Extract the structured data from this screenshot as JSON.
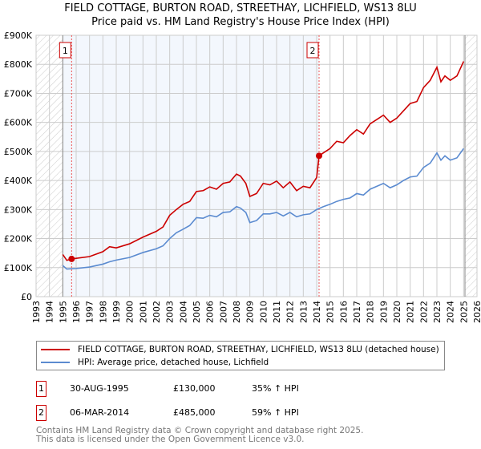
{
  "header": {
    "title": "FIELD COTTAGE, BURTON ROAD, STREETHAY, LICHFIELD, WS13 8LU",
    "subtitle": "Price paid vs. HM Land Registry's House Price Index (HPI)"
  },
  "chart_data": {
    "type": "line",
    "title": "FIELD COTTAGE, BURTON ROAD, STREETHAY, LICHFIELD, WS13 8LU",
    "subtitle": "Price paid vs. HM Land Registry's House Price Index (HPI)",
    "xlim": [
      1993,
      2026
    ],
    "ylim": [
      0,
      900000
    ],
    "x_ticks": [
      "1993",
      "1994",
      "1995",
      "1996",
      "1997",
      "1998",
      "1999",
      "2000",
      "2001",
      "2002",
      "2003",
      "2004",
      "2005",
      "2006",
      "2007",
      "2008",
      "2009",
      "2010",
      "2011",
      "2012",
      "2013",
      "2014",
      "2015",
      "2016",
      "2017",
      "2018",
      "2019",
      "2020",
      "2021",
      "2022",
      "2023",
      "2024",
      "2025",
      "2026"
    ],
    "y_ticks": [
      {
        "v": 0,
        "label": "£0"
      },
      {
        "v": 100000,
        "label": "£100K"
      },
      {
        "v": 200000,
        "label": "£200K"
      },
      {
        "v": 300000,
        "label": "£300K"
      },
      {
        "v": 400000,
        "label": "£400K"
      },
      {
        "v": 500000,
        "label": "£500K"
      },
      {
        "v": 600000,
        "label": "£600K"
      },
      {
        "v": 700000,
        "label": "£700K"
      },
      {
        "v": 800000,
        "label": "£800K"
      },
      {
        "v": 900000,
        "label": "£900K"
      }
    ],
    "grid": true,
    "data_range": [
      1995,
      2025.1
    ],
    "shaded_range": [
      1995,
      2014.18
    ],
    "series": [
      {
        "name": "FIELD COTTAGE, BURTON ROAD, STREETHAY, LICHFIELD, WS13 8LU (detached house)",
        "color": "#cc0000",
        "x": [
          1995,
          1995.3,
          1995.66,
          1996,
          1997,
          1998,
          1998.5,
          1999,
          2000,
          2001,
          2002,
          2002.5,
          2003,
          2003.5,
          2004,
          2004.5,
          2005,
          2005.5,
          2006,
          2006.5,
          2007,
          2007.5,
          2008,
          2008.3,
          2008.7,
          2009,
          2009.5,
          2010,
          2010.5,
          2011,
          2011.5,
          2012,
          2012.5,
          2013,
          2013.5,
          2014,
          2014.18,
          2014.5,
          2015,
          2015.5,
          2016,
          2016.5,
          2017,
          2017.5,
          2018,
          2018.5,
          2019,
          2019.5,
          2020,
          2020.5,
          2021,
          2021.5,
          2022,
          2022.5,
          2023,
          2023.3,
          2023.6,
          2024,
          2024.5,
          2025
        ],
        "y": [
          145000,
          125000,
          130000,
          132000,
          138000,
          155000,
          172000,
          168000,
          182000,
          205000,
          225000,
          240000,
          280000,
          300000,
          318000,
          328000,
          362000,
          365000,
          378000,
          370000,
          390000,
          395000,
          422000,
          415000,
          390000,
          345000,
          355000,
          390000,
          385000,
          398000,
          375000,
          395000,
          365000,
          380000,
          375000,
          410000,
          485000,
          495000,
          510000,
          535000,
          530000,
          555000,
          575000,
          560000,
          595000,
          610000,
          625000,
          600000,
          615000,
          640000,
          665000,
          672000,
          720000,
          745000,
          790000,
          740000,
          760000,
          745000,
          760000,
          810000
        ]
      },
      {
        "name": "HPI: Average price, detached house, Lichfield",
        "color": "#5b8bd0",
        "x": [
          1995,
          1995.3,
          1996,
          1997,
          1998,
          1998.5,
          1999,
          2000,
          2001,
          2002,
          2002.5,
          2003,
          2003.5,
          2004,
          2004.5,
          2005,
          2005.5,
          2006,
          2006.5,
          2007,
          2007.5,
          2008,
          2008.3,
          2008.7,
          2009,
          2009.5,
          2010,
          2010.5,
          2011,
          2011.5,
          2012,
          2012.5,
          2013,
          2013.5,
          2014,
          2014.5,
          2015,
          2015.5,
          2016,
          2016.5,
          2017,
          2017.5,
          2018,
          2018.5,
          2019,
          2019.5,
          2020,
          2020.5,
          2021,
          2021.5,
          2022,
          2022.5,
          2023,
          2023.3,
          2023.6,
          2024,
          2024.5,
          2025
        ],
        "y": [
          107000,
          95000,
          97000,
          102000,
          112000,
          120000,
          126000,
          135000,
          152000,
          165000,
          175000,
          200000,
          220000,
          232000,
          245000,
          272000,
          270000,
          280000,
          275000,
          290000,
          292000,
          310000,
          305000,
          290000,
          255000,
          262000,
          285000,
          285000,
          290000,
          278000,
          290000,
          275000,
          282000,
          285000,
          300000,
          310000,
          318000,
          328000,
          335000,
          340000,
          355000,
          350000,
          370000,
          380000,
          390000,
          375000,
          385000,
          400000,
          412000,
          415000,
          445000,
          460000,
          495000,
          470000,
          485000,
          470000,
          478000,
          510000
        ]
      }
    ],
    "annotations": [
      {
        "label": "1",
        "x": 1995.66,
        "y": 130000
      },
      {
        "label": "2",
        "x": 2014.18,
        "y": 485000
      }
    ]
  },
  "legend": {
    "items": [
      {
        "label": "FIELD COTTAGE, BURTON ROAD, STREETHAY, LICHFIELD, WS13 8LU (detached house)",
        "color": "#cc0000"
      },
      {
        "label": "HPI: Average price, detached house, Lichfield",
        "color": "#5b8bd0"
      }
    ]
  },
  "transactions": [
    {
      "num": "1",
      "date": "30-AUG-1995",
      "price": "£130,000",
      "hpi": "35% ↑ HPI"
    },
    {
      "num": "2",
      "date": "06-MAR-2014",
      "price": "£485,000",
      "hpi": "59% ↑ HPI"
    }
  ],
  "footer": {
    "line1": "Contains HM Land Registry data © Crown copyright and database right 2025.",
    "line2": "This data is licensed under the Open Government Licence v3.0."
  }
}
